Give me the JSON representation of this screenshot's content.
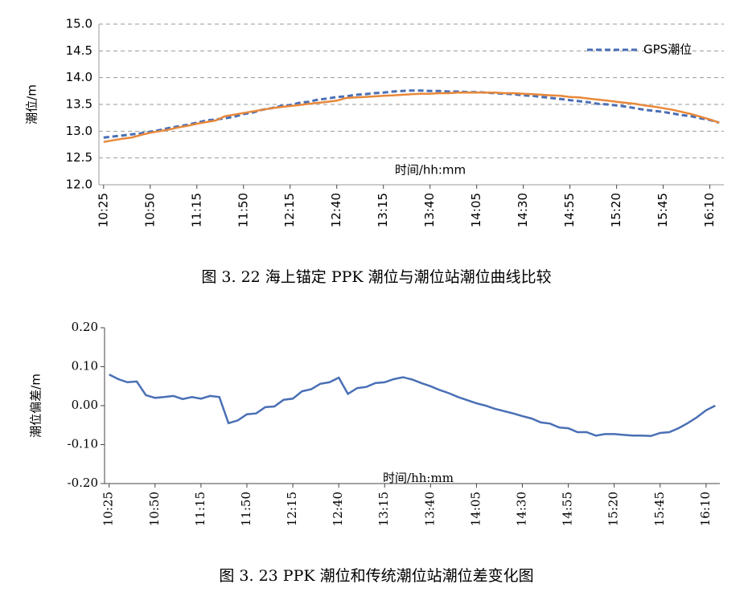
{
  "chart_data": [
    {
      "type": "line",
      "caption": "图 3. 22 海上锚定 PPK 潮位与潮位站潮位曲线比较",
      "y_label": "潮位/m",
      "x_label": "时间/hh:mm",
      "categories": [
        "10:25",
        null,
        null,
        null,
        null,
        "10:50",
        null,
        null,
        null,
        null,
        "11:15",
        null,
        null,
        null,
        null,
        "11:50",
        null,
        null,
        null,
        null,
        "12:15",
        null,
        null,
        null,
        null,
        "12:40",
        null,
        null,
        null,
        null,
        "13:15",
        null,
        null,
        null,
        null,
        "13:40",
        null,
        null,
        null,
        null,
        "14:05",
        null,
        null,
        null,
        null,
        "14:30",
        null,
        null,
        null,
        null,
        "14:55",
        null,
        null,
        null,
        null,
        "15:20",
        null,
        null,
        null,
        null,
        "15:45",
        null,
        null,
        null,
        null,
        "16:10",
        null
      ],
      "series": [
        {
          "name": "GPS潮位",
          "color": "#4a6fb5",
          "dashed": true,
          "values": [
            12.88,
            12.9,
            12.92,
            12.94,
            12.96,
            12.99,
            13.02,
            13.06,
            13.09,
            13.12,
            13.16,
            13.2,
            13.22,
            13.24,
            13.27,
            13.32,
            13.35,
            13.4,
            13.43,
            13.47,
            13.49,
            13.53,
            13.55,
            13.59,
            13.61,
            13.64,
            13.65,
            13.68,
            13.69,
            13.71,
            13.72,
            13.74,
            13.75,
            13.76,
            13.76,
            13.75,
            13.75,
            13.74,
            13.74,
            13.73,
            13.73,
            13.72,
            13.71,
            13.7,
            13.69,
            13.67,
            13.66,
            13.64,
            13.62,
            13.6,
            13.58,
            13.56,
            13.54,
            13.51,
            13.5,
            13.48,
            13.46,
            13.43,
            13.4,
            13.38,
            13.36,
            13.33,
            13.3,
            13.28,
            13.24,
            13.21,
            13.16
          ]
        },
        {
          "color": "#e8883a",
          "dashed": false,
          "values": [
            12.8,
            12.83,
            12.86,
            12.88,
            12.93,
            12.97,
            13.0,
            13.03,
            13.07,
            13.1,
            13.14,
            13.17,
            13.2,
            13.28,
            13.31,
            13.34,
            13.37,
            13.4,
            13.43,
            13.45,
            13.47,
            13.49,
            13.51,
            13.53,
            13.55,
            13.57,
            13.62,
            13.63,
            13.64,
            13.65,
            13.66,
            13.67,
            13.68,
            13.69,
            13.7,
            13.7,
            13.71,
            13.71,
            13.72,
            13.72,
            13.72,
            13.72,
            13.72,
            13.71,
            13.71,
            13.7,
            13.69,
            13.68,
            13.67,
            13.66,
            13.64,
            13.63,
            13.61,
            13.59,
            13.57,
            13.55,
            13.53,
            13.51,
            13.48,
            13.46,
            13.43,
            13.4,
            13.36,
            13.32,
            13.27,
            13.22,
            13.16
          ]
        }
      ],
      "ylim": [
        12,
        15
      ],
      "yticks": [
        {
          "value": 12,
          "label": "12.0"
        },
        {
          "value": 12.5,
          "label": "12.5"
        },
        {
          "value": 13,
          "label": "13.0"
        },
        {
          "value": 13.5,
          "label": "13.5"
        },
        {
          "value": 14,
          "label": "14.0"
        },
        {
          "value": 14.5,
          "label": "14.5"
        },
        {
          "value": 15,
          "label": "15.0"
        }
      ],
      "grid": true,
      "legend": "top-right"
    },
    {
      "type": "line",
      "caption": "图 3. 23   PPK 潮位和传统潮位站潮位差变化图",
      "y_label": "潮位偏差/m",
      "x_label": "时间/hh:mm",
      "categories": [
        "10:25",
        null,
        null,
        null,
        null,
        "10:50",
        null,
        null,
        null,
        null,
        "11:15",
        null,
        null,
        null,
        null,
        "11:50",
        null,
        null,
        null,
        null,
        "12:15",
        null,
        null,
        null,
        null,
        "12:40",
        null,
        null,
        null,
        null,
        "13:15",
        null,
        null,
        null,
        null,
        "13:40",
        null,
        null,
        null,
        null,
        "14:05",
        null,
        null,
        null,
        null,
        "14:30",
        null,
        null,
        null,
        null,
        "14:55",
        null,
        null,
        null,
        null,
        "15:20",
        null,
        null,
        null,
        null,
        "15:45",
        null,
        null,
        null,
        null,
        "16:10",
        null
      ],
      "series": [
        {
          "color": "#4a6fb5",
          "dashed": false,
          "values": [
            0.08,
            0.068,
            0.06,
            0.062,
            0.027,
            0.02,
            0.022,
            0.025,
            0.017,
            0.022,
            0.018,
            0.025,
            0.022,
            -0.045,
            -0.038,
            -0.022,
            -0.02,
            -0.004,
            -0.002,
            0.015,
            0.018,
            0.037,
            0.042,
            0.056,
            0.06,
            0.072,
            0.03,
            0.045,
            0.048,
            0.058,
            0.06,
            0.068,
            0.073,
            0.067,
            0.058,
            0.05,
            0.04,
            0.032,
            0.022,
            0.014,
            0.006,
            0.0,
            -0.008,
            -0.014,
            -0.02,
            -0.027,
            -0.033,
            -0.043,
            -0.046,
            -0.056,
            -0.058,
            -0.068,
            -0.068,
            -0.077,
            -0.073,
            -0.073,
            -0.075,
            -0.077,
            -0.077,
            -0.078,
            -0.07,
            -0.068,
            -0.058,
            -0.045,
            -0.03,
            -0.012,
            0.0
          ]
        }
      ],
      "ylim": [
        -0.2,
        0.2
      ],
      "yticks": [
        {
          "value": -0.2,
          "label": "-0.20"
        },
        {
          "value": -0.1,
          "label": "-0.10"
        },
        {
          "value": 0,
          "label": "0.00"
        },
        {
          "value": 0.1,
          "label": "0.10"
        },
        {
          "value": 0.2,
          "label": "0.20"
        }
      ],
      "grid": false
    }
  ]
}
